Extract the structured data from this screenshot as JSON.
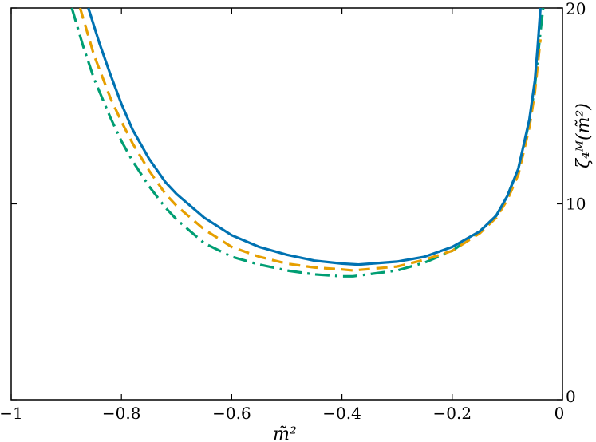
{
  "chart_data": {
    "type": "line",
    "xlabel": "m̃²",
    "ylabel": "ζ₄ᴹ(m̃²)",
    "xlim": [
      -1,
      0
    ],
    "ylim": [
      0,
      20
    ],
    "x_ticks": [
      {
        "value": -1,
        "label": "−1"
      },
      {
        "value": -0.8,
        "label": "−0.8"
      },
      {
        "value": -0.6,
        "label": "−0.6"
      },
      {
        "value": -0.4,
        "label": "−0.4"
      },
      {
        "value": -0.2,
        "label": "−0.2"
      },
      {
        "value": 0,
        "label": "0"
      }
    ],
    "y_ticks": [
      {
        "value": 0,
        "label": "0"
      },
      {
        "value": 10,
        "label": "10"
      },
      {
        "value": 20,
        "label": "20"
      }
    ],
    "y_axis_side": "right",
    "grid": false,
    "series": [
      {
        "color": "#0072B2",
        "style": "solid",
        "x": [
          -0.86,
          -0.84,
          -0.82,
          -0.8,
          -0.78,
          -0.75,
          -0.72,
          -0.7,
          -0.65,
          -0.6,
          -0.55,
          -0.5,
          -0.45,
          -0.4,
          -0.37,
          -0.3,
          -0.25,
          -0.2,
          -0.15,
          -0.12,
          -0.1,
          -0.08,
          -0.06,
          -0.05,
          -0.045,
          -0.04
        ],
        "values": [
          20,
          18.2,
          16.6,
          15.1,
          13.8,
          12.3,
          11.1,
          10.5,
          9.3,
          8.4,
          7.8,
          7.4,
          7.1,
          6.95,
          6.9,
          7.05,
          7.3,
          7.8,
          8.6,
          9.4,
          10.4,
          11.8,
          14.3,
          16.3,
          18.0,
          20
        ]
      },
      {
        "color": "#E69F00",
        "style": "dashed",
        "x": [
          -0.875,
          -0.85,
          -0.82,
          -0.8,
          -0.78,
          -0.75,
          -0.72,
          -0.7,
          -0.65,
          -0.6,
          -0.55,
          -0.5,
          -0.45,
          -0.4,
          -0.38,
          -0.3,
          -0.25,
          -0.2,
          -0.15,
          -0.12,
          -0.1,
          -0.08,
          -0.06,
          -0.05,
          -0.04
        ],
        "values": [
          20,
          17.6,
          15.4,
          14.2,
          13.1,
          11.7,
          10.5,
          9.9,
          8.7,
          7.8,
          7.3,
          6.95,
          6.75,
          6.65,
          6.6,
          6.8,
          7.15,
          7.6,
          8.5,
          9.3,
          10.2,
          11.5,
          13.9,
          15.7,
          18.4
        ]
      },
      {
        "color": "#009E73",
        "style": "dash-dot",
        "x": [
          -0.89,
          -0.87,
          -0.85,
          -0.82,
          -0.8,
          -0.78,
          -0.75,
          -0.72,
          -0.7,
          -0.65,
          -0.6,
          -0.55,
          -0.5,
          -0.45,
          -0.4,
          -0.38,
          -0.3,
          -0.25,
          -0.2,
          -0.15,
          -0.12,
          -0.1,
          -0.08,
          -0.06,
          -0.05,
          -0.04,
          -0.035
        ],
        "values": [
          20,
          18.1,
          16.4,
          14.4,
          13.2,
          12.2,
          10.9,
          9.8,
          9.2,
          8.0,
          7.3,
          6.9,
          6.6,
          6.4,
          6.3,
          6.3,
          6.6,
          7.0,
          7.6,
          8.6,
          9.4,
          10.4,
          11.8,
          14.2,
          16.0,
          18.8,
          20
        ]
      }
    ]
  }
}
